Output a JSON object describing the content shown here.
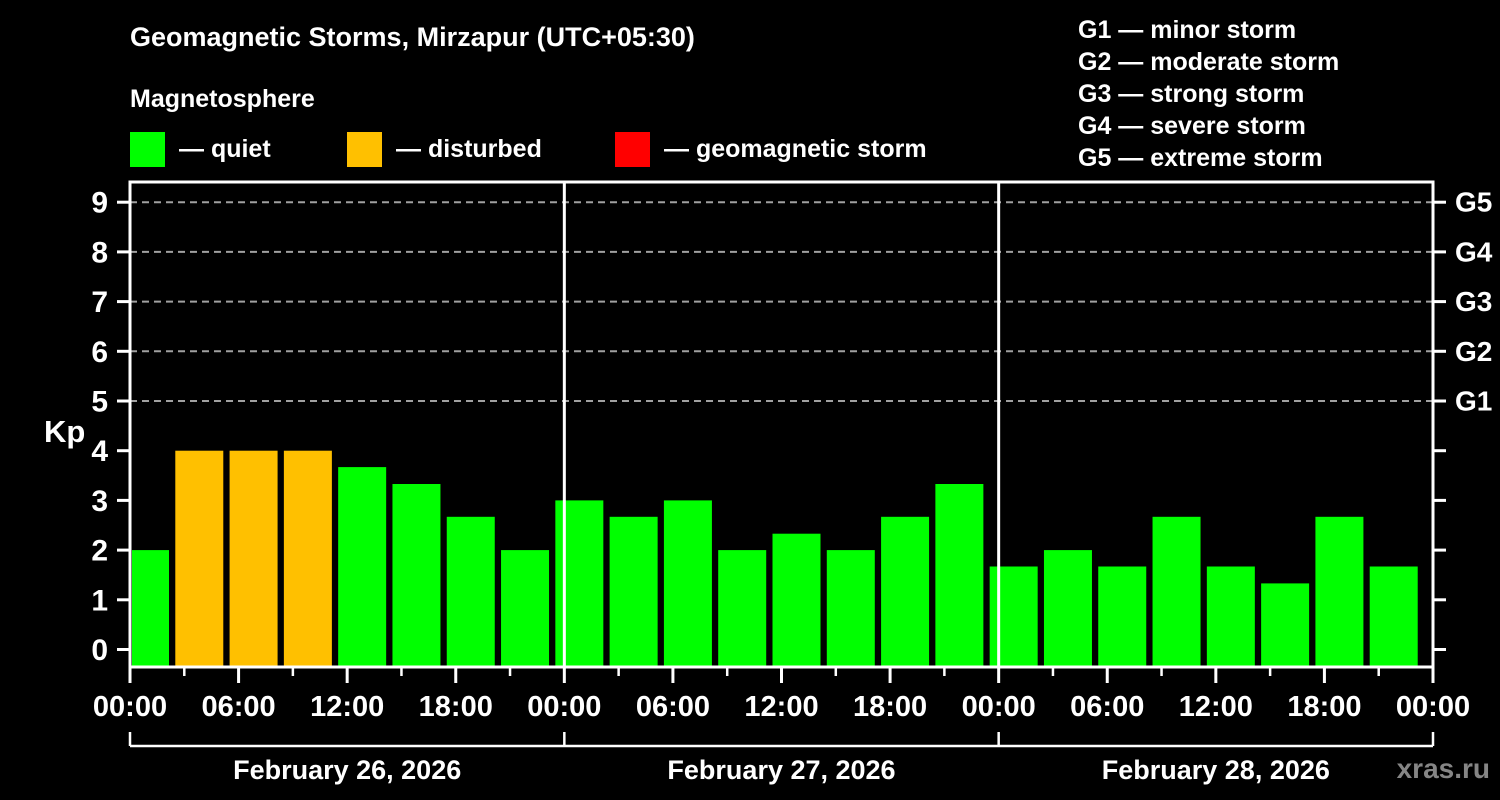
{
  "watermark": "xras.ru",
  "chart_data": {
    "type": "bar",
    "title": "Geomagnetic Storms, Mirzapur (UTC+05:30)",
    "subtitle": "Magnetosphere",
    "ylabel": "Kp",
    "xlabel": "",
    "ylim": [
      0,
      9
    ],
    "bar_interval_hours": 3,
    "grid": "dashed horizontal at storm levels",
    "grid_kp_levels": [
      5,
      6,
      7,
      8,
      9
    ],
    "y_ticks": [
      0,
      1,
      2,
      3,
      4,
      5,
      6,
      7,
      8,
      9
    ],
    "x_tick_labels": [
      "00:00",
      "06:00",
      "12:00",
      "18:00",
      "00:00",
      "06:00",
      "12:00",
      "18:00",
      "00:00",
      "06:00",
      "12:00",
      "18:00",
      "00:00"
    ],
    "right_axis_labels": [
      {
        "label": "G5",
        "kp": 9
      },
      {
        "label": "G4",
        "kp": 8
      },
      {
        "label": "G3",
        "kp": 7
      },
      {
        "label": "G2",
        "kp": 6
      },
      {
        "label": "G1",
        "kp": 5
      }
    ],
    "legend": [
      {
        "label": "— quiet",
        "color": "#00ff00",
        "status": "quiet"
      },
      {
        "label": "— disturbed",
        "color": "#ffc000",
        "status": "disturbed"
      },
      {
        "label": "— geomagnetic storm",
        "color": "#ff0000",
        "status": "storm"
      }
    ],
    "g_scale_legend": [
      "G1 — minor storm",
      "G2 — moderate storm",
      "G3 — strong storm",
      "G4 — severe storm",
      "G5 — extreme storm"
    ],
    "colors": {
      "quiet": "#00ff00",
      "disturbed": "#ffc000",
      "storm": "#ff0000"
    },
    "days": [
      {
        "date": "February 26, 2026",
        "values": [
          2.0,
          4.0,
          4.0,
          4.0,
          3.67,
          3.33,
          2.67,
          2.0
        ],
        "status": [
          "quiet",
          "disturbed",
          "disturbed",
          "disturbed",
          "quiet",
          "quiet",
          "quiet",
          "quiet"
        ]
      },
      {
        "date": "February 27, 2026",
        "values": [
          3.0,
          2.67,
          3.0,
          2.0,
          2.33,
          2.0,
          2.67,
          3.33
        ],
        "status": [
          "quiet",
          "quiet",
          "quiet",
          "quiet",
          "quiet",
          "quiet",
          "quiet",
          "quiet"
        ]
      },
      {
        "date": "February 28, 2026",
        "values": [
          1.67,
          2.0,
          1.67,
          2.67,
          1.67,
          1.33,
          2.67,
          1.67
        ],
        "status": [
          "quiet",
          "quiet",
          "quiet",
          "quiet",
          "quiet",
          "quiet",
          "quiet",
          "quiet"
        ]
      }
    ]
  }
}
